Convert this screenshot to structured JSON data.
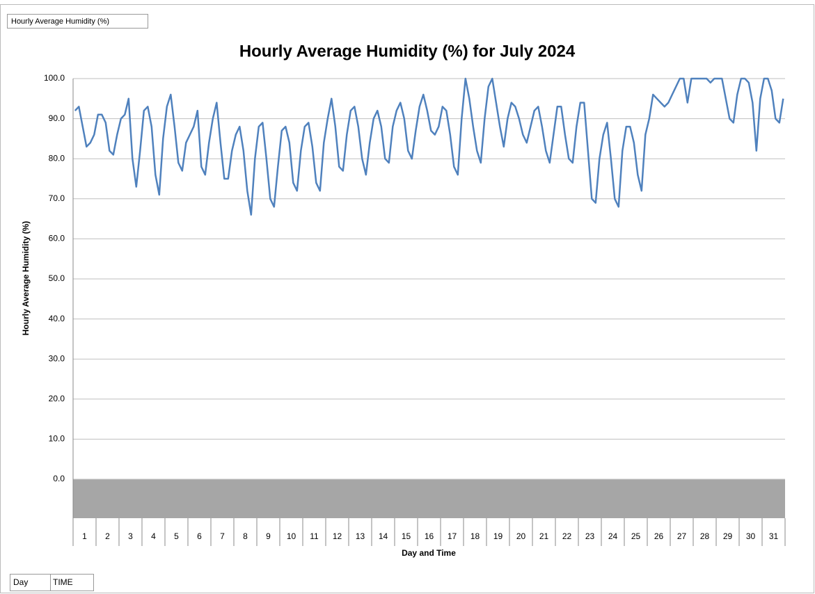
{
  "pivot_field_button": "Hourly Average Humidity (%)",
  "axis_field_buttons": [
    "Day",
    "TIME"
  ],
  "chart_data": {
    "type": "line",
    "title": "Hourly Average Humidity (%) for July 2024",
    "y_label": "Hourly Average Humidity (%)",
    "x_label": "Day and Time",
    "color": "#4f81bd",
    "grid": true,
    "categories": [
      "1",
      "2",
      "3",
      "4",
      "5",
      "6",
      "7",
      "8",
      "9",
      "10",
      "11",
      "12",
      "13",
      "14",
      "15",
      "16",
      "17",
      "18",
      "19",
      "20",
      "21",
      "22",
      "23",
      "24",
      "25",
      "26",
      "27",
      "28",
      "29",
      "30",
      "31"
    ],
    "values": [
      [
        92,
        93,
        88,
        83,
        84,
        86
      ],
      [
        91,
        91,
        89,
        82,
        81,
        86
      ],
      [
        90,
        91,
        95,
        80,
        73,
        82
      ],
      [
        92,
        93,
        88,
        76,
        71,
        85
      ],
      [
        93,
        96,
        88,
        79,
        77,
        84
      ],
      [
        86,
        88,
        92,
        78,
        76,
        84
      ],
      [
        90,
        94,
        84,
        75,
        75,
        82
      ],
      [
        86,
        88,
        82,
        72,
        66,
        80
      ],
      [
        88,
        89,
        80,
        70,
        68,
        78
      ],
      [
        87,
        88,
        84,
        74,
        72,
        82
      ],
      [
        88,
        89,
        83,
        74,
        72,
        84
      ],
      [
        90,
        95,
        88,
        78,
        77,
        86
      ],
      [
        92,
        93,
        88,
        80,
        76,
        84
      ],
      [
        90,
        92,
        88,
        80,
        79,
        88
      ],
      [
        92,
        94,
        90,
        82,
        80,
        87
      ],
      [
        93,
        96,
        92,
        87,
        86,
        88
      ],
      [
        93,
        92,
        86,
        78,
        76,
        90
      ],
      [
        100,
        95,
        88,
        82,
        79,
        90
      ],
      [
        98,
        100,
        94,
        88,
        83,
        90
      ],
      [
        94,
        93,
        90,
        86,
        84,
        88
      ],
      [
        92,
        93,
        88,
        82,
        79,
        86
      ],
      [
        93,
        93,
        86,
        80,
        79,
        88
      ],
      [
        94,
        94,
        82,
        70,
        69,
        80
      ],
      [
        86,
        89,
        80,
        70,
        68,
        82
      ],
      [
        88,
        88,
        84,
        76,
        72,
        86
      ],
      [
        90,
        96,
        95,
        94,
        93,
        94
      ],
      [
        96,
        98,
        100,
        100,
        94,
        100
      ],
      [
        100,
        100,
        100,
        100,
        99,
        100
      ],
      [
        100,
        100,
        95,
        90,
        89,
        96
      ],
      [
        100,
        100,
        99,
        94,
        82,
        95
      ],
      [
        100,
        100,
        97,
        90,
        89,
        95
      ]
    ],
    "ylim": [
      0,
      100
    ],
    "yticks": [
      {
        "value": 0,
        "label": "0.0"
      },
      {
        "value": 10,
        "label": "10.0"
      },
      {
        "value": 20,
        "label": "20.0"
      },
      {
        "value": 30,
        "label": "30.0"
      },
      {
        "value": 40,
        "label": "40.0"
      },
      {
        "value": 50,
        "label": "50.0"
      },
      {
        "value": 60,
        "label": "60.0"
      },
      {
        "value": 70,
        "label": "70.0"
      },
      {
        "value": 80,
        "label": "80.0"
      },
      {
        "value": 90,
        "label": "90.0"
      },
      {
        "value": 100,
        "label": "100.0"
      }
    ]
  }
}
